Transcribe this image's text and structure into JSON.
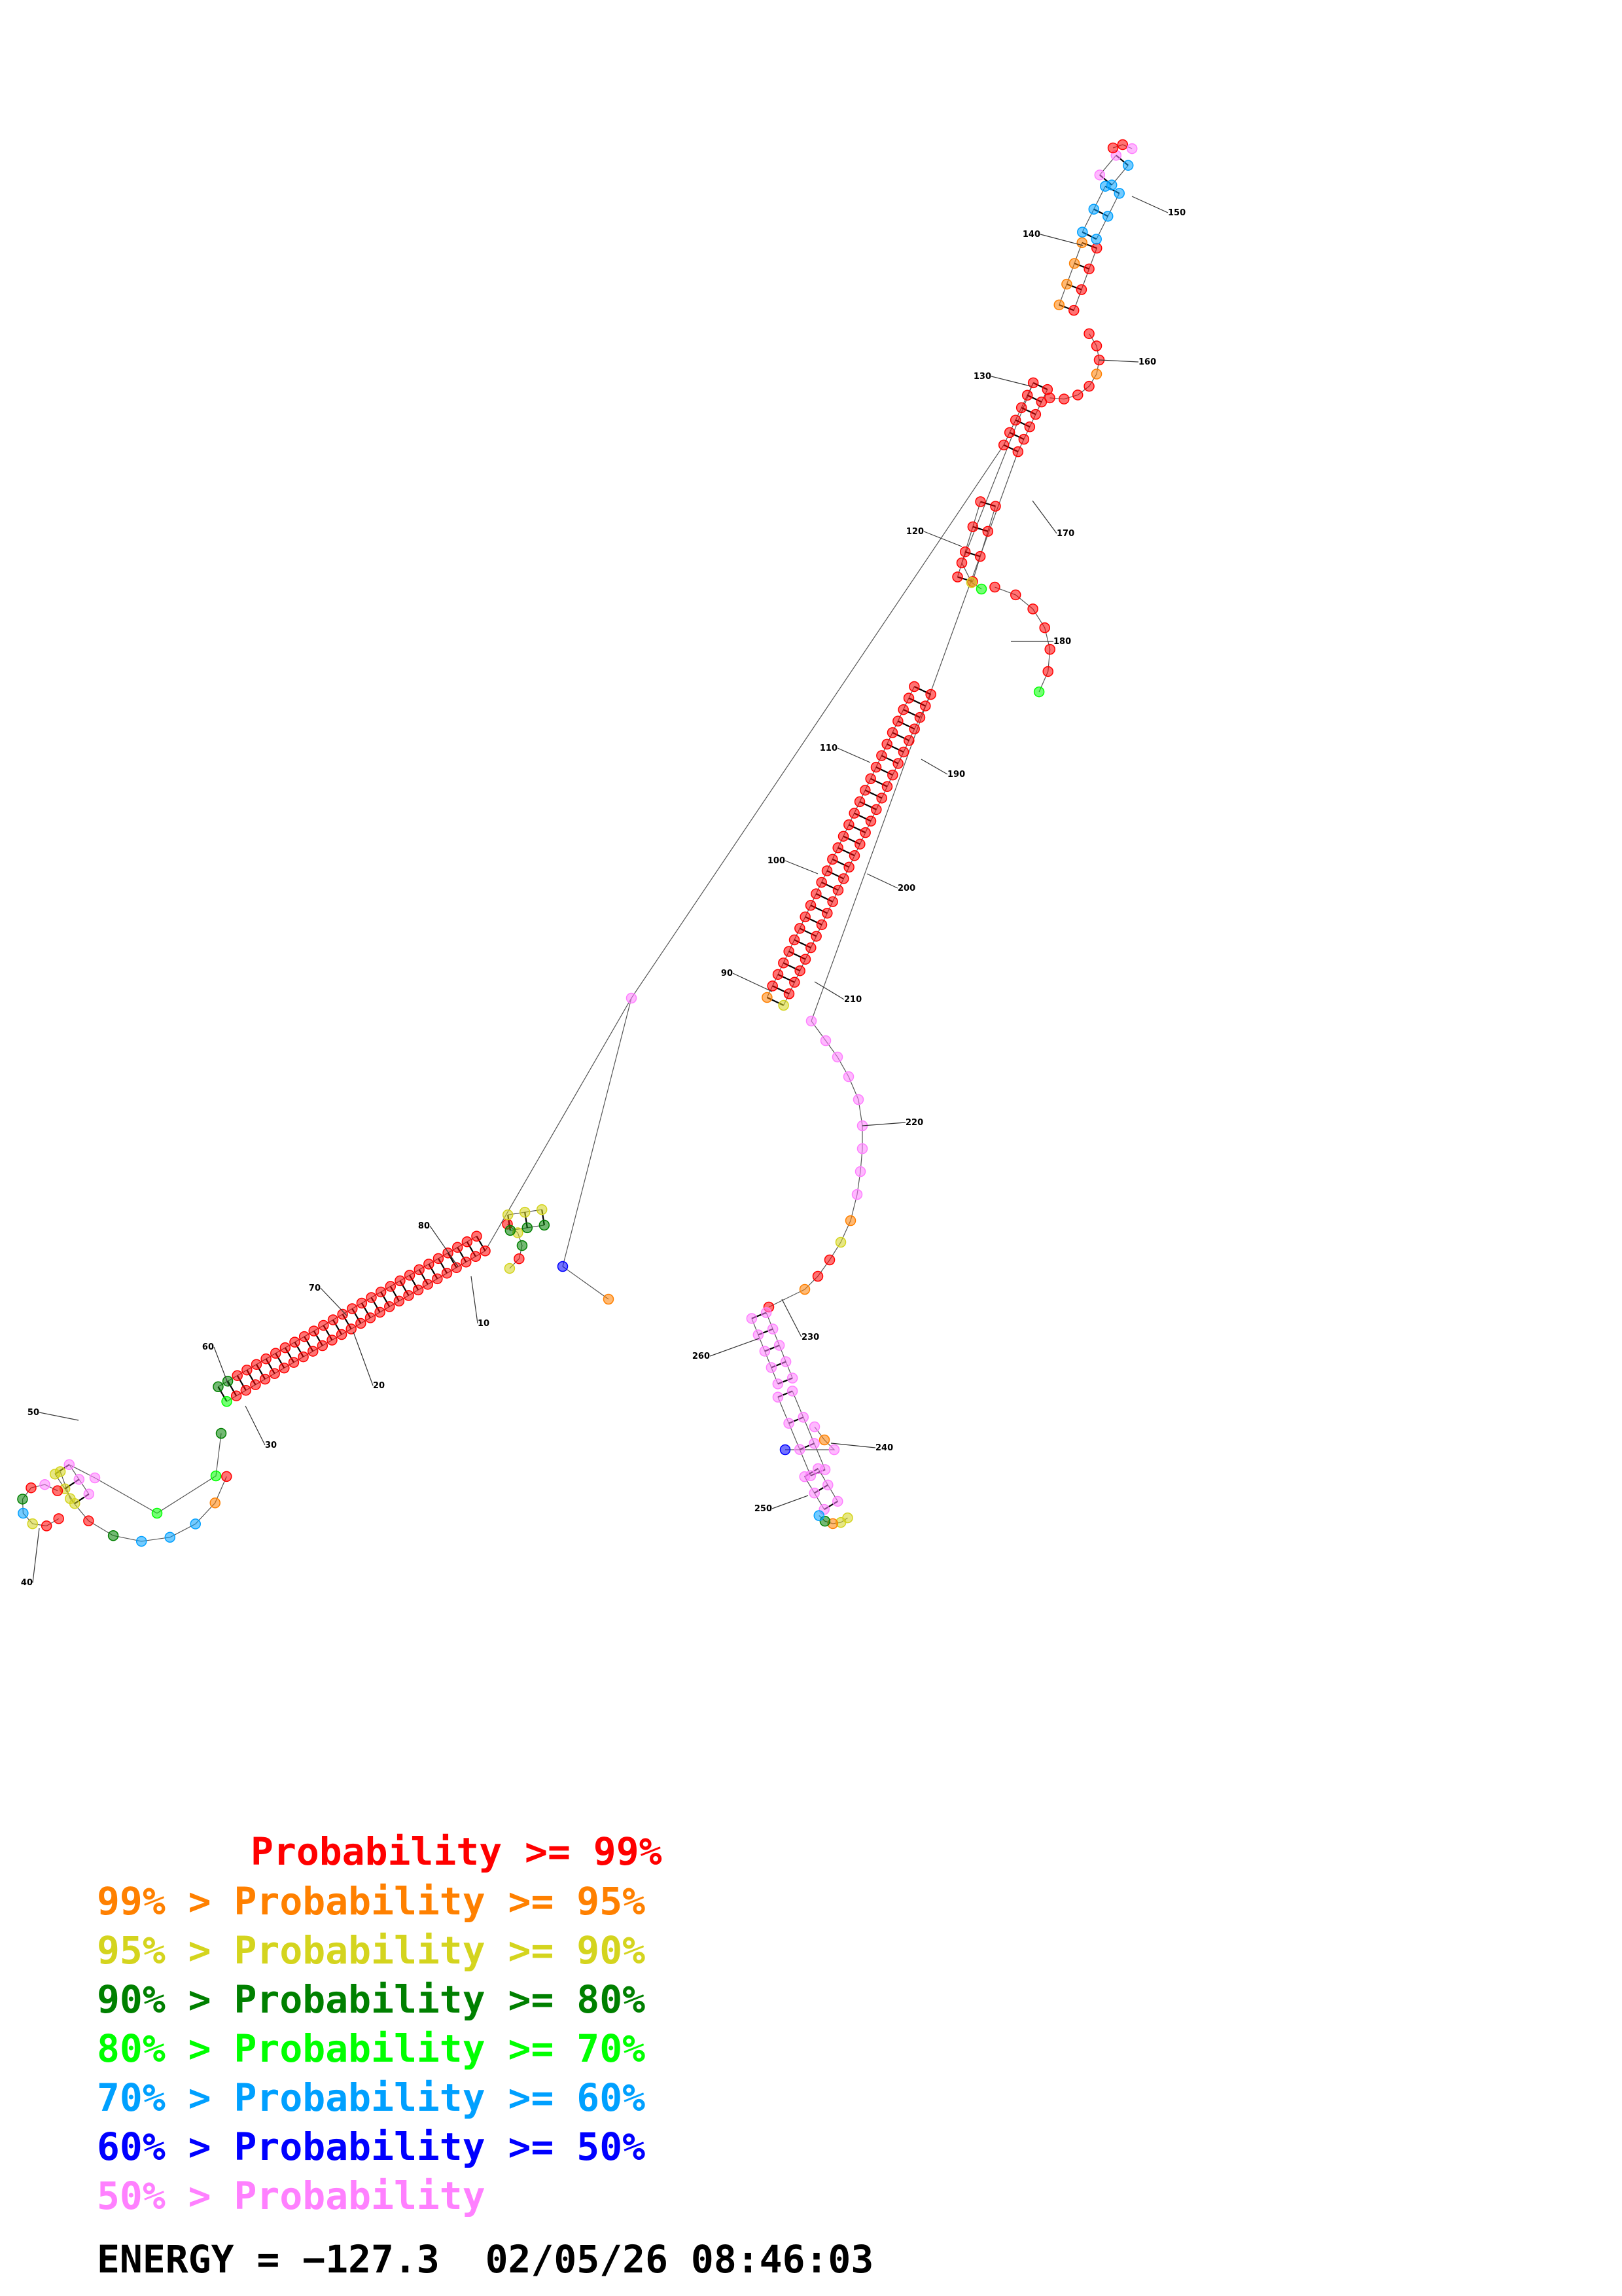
{
  "legend": [
    {
      "prefix": "",
      "text": "Probability >= 99%",
      "color": "#ff0000"
    },
    {
      "prefix": "99% > ",
      "text": "Probability >= 95%",
      "color": "#ff8000"
    },
    {
      "prefix": "95% > ",
      "text": "Probability >= 90%",
      "color": "#d4d41e"
    },
    {
      "prefix": "90% > ",
      "text": "Probability >= 80%",
      "color": "#008000"
    },
    {
      "prefix": "80% > ",
      "text": "Probability >= 70%",
      "color": "#00ff00"
    },
    {
      "prefix": "70% > ",
      "text": "Probability >= 60%",
      "color": "#00a0ff"
    },
    {
      "prefix": "60% > ",
      "text": "Probability >= 50%",
      "color": "#0000ff"
    },
    {
      "prefix": "50% > ",
      "text": "Probability",
      "color": "#ff80ff"
    }
  ],
  "energy_label": "ENERGY =",
  "energy_value": "−127.3",
  "timestamp": "02/05/26 08:46:03",
  "position_labels": [
    "10",
    "20",
    "30",
    "40",
    "50",
    "60",
    "70",
    "80",
    "90",
    "100",
    "110",
    "120",
    "130",
    "140",
    "150",
    "160",
    "170",
    "180",
    "190",
    "200",
    "210",
    "220",
    "230",
    "240",
    "250",
    "260"
  ],
  "pair_color": "#000000"
}
